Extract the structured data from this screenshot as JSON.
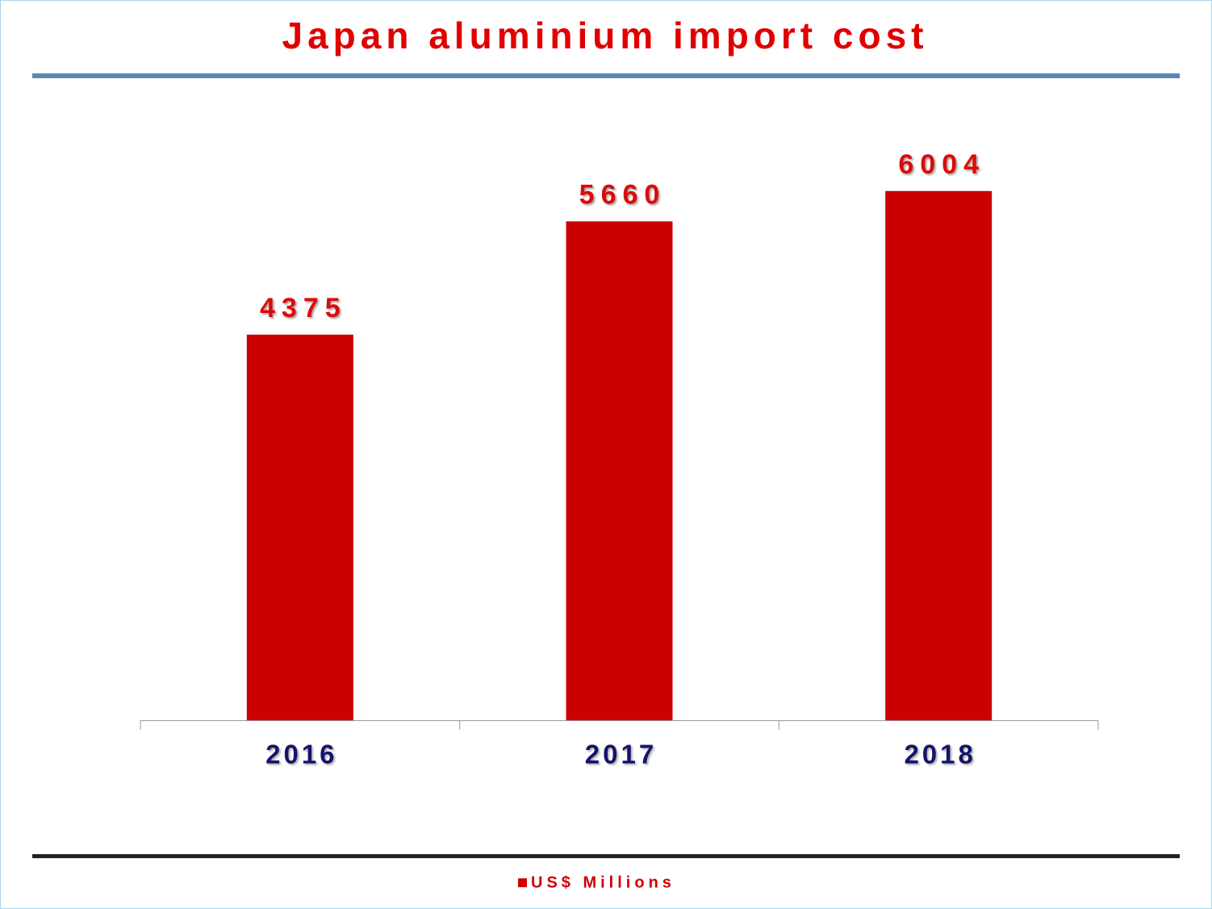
{
  "chart_data": {
    "type": "bar",
    "title": "Japan aluminium import cost",
    "categories": [
      "2016",
      "2017",
      "2018"
    ],
    "series": [
      {
        "name": "US$ Millions",
        "color": "#cc0000",
        "values": [
          4375,
          5660,
          6004
        ]
      }
    ],
    "ylim": [
      0,
      7000
    ],
    "legend": "bottom"
  }
}
